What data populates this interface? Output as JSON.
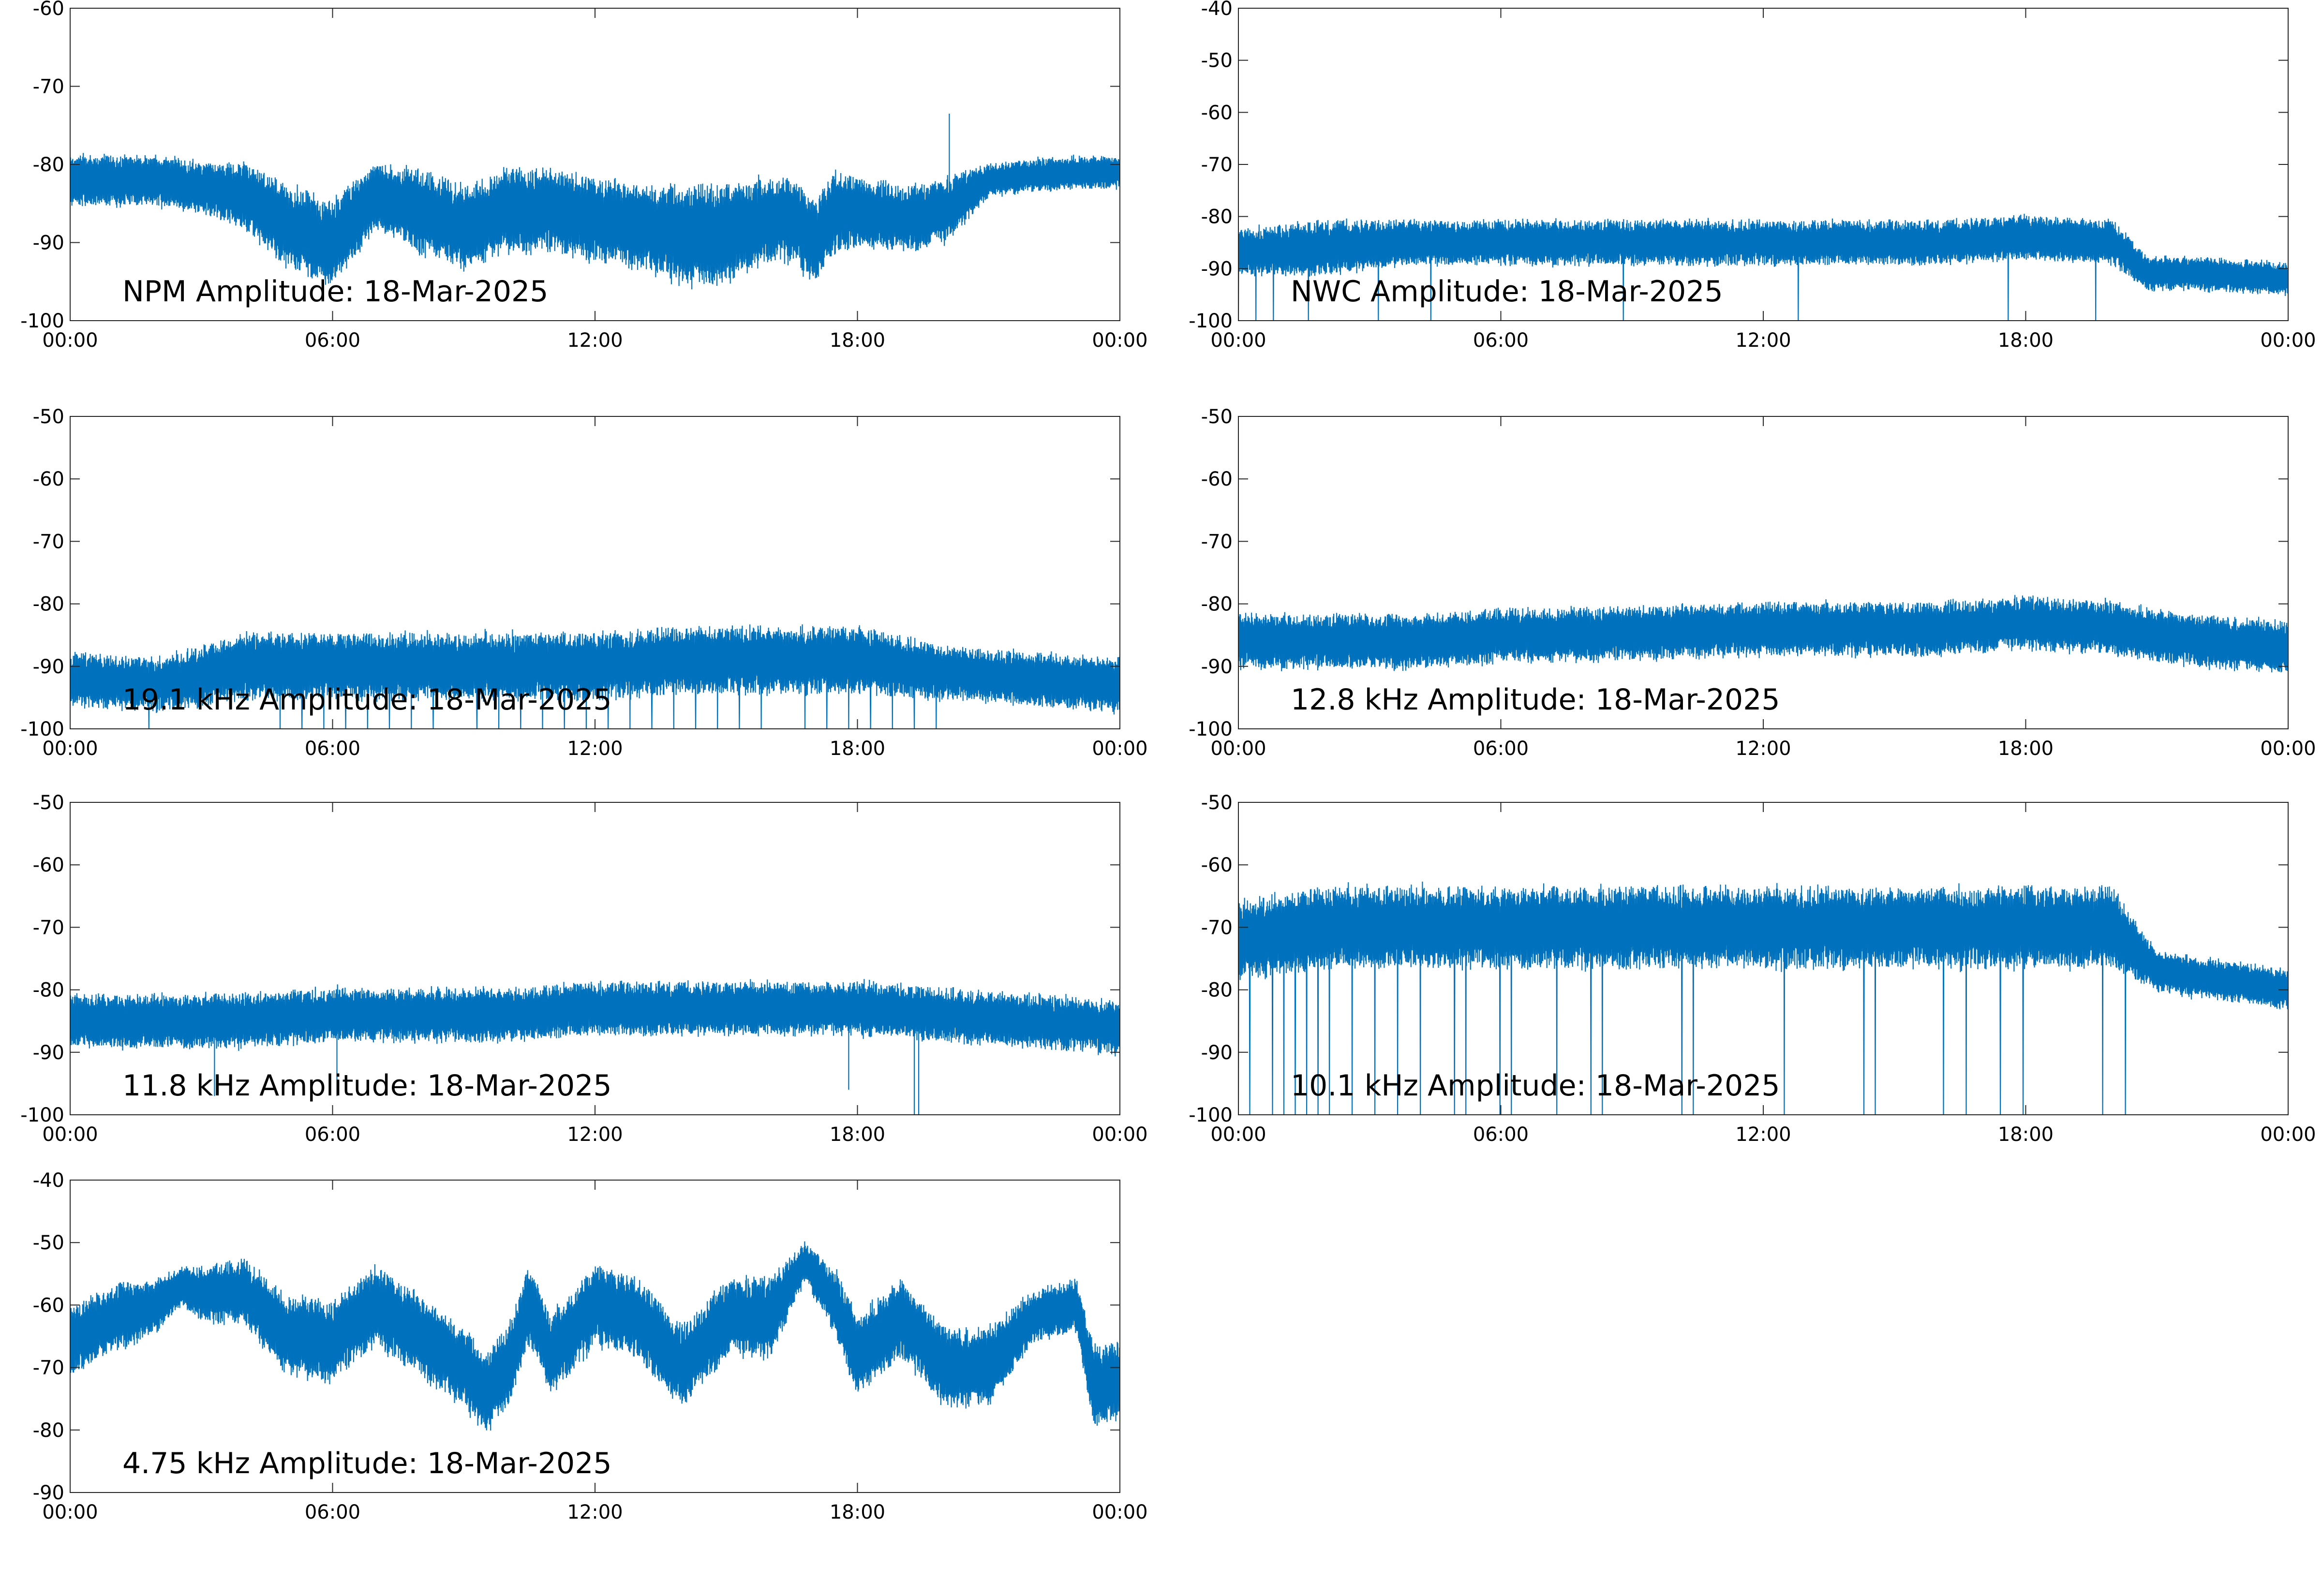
{
  "chart_data": [
    {
      "type": "line",
      "title": "NPM Amplitude: 18-Mar-2025",
      "xlabel": "",
      "ylabel": "",
      "x_ticks": [
        "00:00",
        "06:00",
        "12:00",
        "18:00",
        "00:00"
      ],
      "xlim_hours": [
        0,
        24
      ],
      "ylim": [
        -100,
        -60
      ],
      "y_ticks": [
        -60,
        -70,
        -80,
        -90,
        -100
      ],
      "grid": false,
      "line_color": "#0072BD",
      "series": [
        {
          "x_hours": [
            0,
            1,
            2,
            3,
            4,
            5,
            6,
            7,
            8,
            9,
            10,
            11,
            12,
            13,
            14,
            15,
            16,
            16.5,
            17,
            17.5,
            18,
            19,
            20,
            21,
            22,
            23,
            24
          ],
          "center": [
            -82,
            -82,
            -82,
            -83,
            -84,
            -88,
            -90,
            -84,
            -86,
            -88,
            -86,
            -86,
            -87,
            -88,
            -89,
            -89,
            -87,
            -87,
            -90,
            -86,
            -86,
            -87,
            -86,
            -82,
            -81.5,
            -81,
            -81
          ],
          "spread": [
            3,
            3,
            3,
            3,
            4,
            5,
            5,
            4,
            5,
            5,
            5,
            5,
            5,
            5,
            6,
            6,
            5,
            5,
            5,
            5,
            4,
            4,
            4,
            2,
            2,
            2,
            2
          ],
          "spikes": [
            [
              20.1,
              -73.5
            ]
          ]
        }
      ]
    },
    {
      "type": "line",
      "title": "NWC Amplitude: 18-Mar-2025",
      "xlabel": "",
      "ylabel": "",
      "x_ticks": [
        "00:00",
        "06:00",
        "12:00",
        "18:00",
        "00:00"
      ],
      "xlim_hours": [
        0,
        24
      ],
      "ylim": [
        -100,
        -40
      ],
      "y_ticks": [
        -40,
        -50,
        -60,
        -70,
        -80,
        -90,
        -100
      ],
      "grid": false,
      "line_color": "#0072BD",
      "series": [
        {
          "x_hours": [
            0,
            2,
            4,
            6,
            8,
            10,
            12,
            14,
            16,
            18,
            20,
            20.8,
            22,
            24
          ],
          "center": [
            -87,
            -86,
            -85,
            -85,
            -85,
            -85,
            -85,
            -85,
            -85,
            -84,
            -85,
            -91,
            -91,
            -92
          ],
          "spread": [
            4,
            5,
            4,
            4,
            4,
            4,
            4,
            4,
            4,
            4,
            4,
            3,
            3,
            3
          ],
          "dips": {
            "from": 0,
            "to": 21,
            "period": 0.4,
            "min": -100
          }
        }
      ]
    },
    {
      "type": "line",
      "title": "19.1 kHz Amplitude: 18-Mar-2025",
      "xlabel": "",
      "ylabel": "",
      "x_ticks": [
        "00:00",
        "06:00",
        "12:00",
        "18:00",
        "00:00"
      ],
      "xlim_hours": [
        0,
        24
      ],
      "ylim": [
        -100,
        -50
      ],
      "y_ticks": [
        -50,
        -60,
        -70,
        -80,
        -90,
        -100
      ],
      "grid": false,
      "line_color": "#0072BD",
      "series": [
        {
          "x_hours": [
            0,
            2,
            4,
            6,
            8,
            10,
            12,
            14,
            16,
            18,
            20,
            22,
            24
          ],
          "center": [
            -92,
            -93,
            -90,
            -90,
            -90,
            -90,
            -90,
            -89,
            -89,
            -89,
            -91,
            -92,
            -93
          ],
          "spread": [
            4,
            4,
            5,
            5,
            5,
            5,
            5,
            5,
            5,
            5,
            4,
            4,
            4
          ],
          "dips": {
            "from": 1.8,
            "to": 20,
            "period": 0.25,
            "min": -100
          }
        }
      ]
    },
    {
      "type": "line",
      "title": "12.8 kHz Amplitude: 18-Mar-2025",
      "xlabel": "",
      "ylabel": "",
      "x_ticks": [
        "00:00",
        "06:00",
        "12:00",
        "18:00",
        "00:00"
      ],
      "xlim_hours": [
        0,
        24
      ],
      "ylim": [
        -100,
        -50
      ],
      "y_ticks": [
        -50,
        -60,
        -70,
        -80,
        -90,
        -100
      ],
      "grid": false,
      "line_color": "#0072BD",
      "series": [
        {
          "x_hours": [
            0,
            2,
            4,
            6,
            8,
            10,
            12,
            14,
            16,
            18,
            20,
            22,
            24
          ],
          "center": [
            -86,
            -86,
            -86,
            -85,
            -85,
            -84.5,
            -84,
            -84,
            -84,
            -83,
            -84,
            -86,
            -87
          ],
          "spread": [
            4,
            4,
            4,
            4,
            4,
            4,
            4,
            4,
            4,
            4,
            4,
            4,
            4
          ]
        }
      ]
    },
    {
      "type": "line",
      "title": "11.8 kHz Amplitude: 18-Mar-2025",
      "xlabel": "",
      "ylabel": "",
      "x_ticks": [
        "00:00",
        "06:00",
        "12:00",
        "18:00",
        "00:00"
      ],
      "xlim_hours": [
        0,
        24
      ],
      "ylim": [
        -100,
        -50
      ],
      "y_ticks": [
        -50,
        -60,
        -70,
        -80,
        -90,
        -100
      ],
      "grid": false,
      "line_color": "#0072BD",
      "series": [
        {
          "x_hours": [
            0,
            2,
            4,
            6,
            8,
            10,
            12,
            14,
            16,
            18,
            20,
            22,
            24
          ],
          "center": [
            -85,
            -85,
            -85,
            -84,
            -84,
            -84,
            -83,
            -83,
            -83,
            -83,
            -84,
            -85,
            -86
          ],
          "spread": [
            4,
            4,
            4,
            4,
            4,
            4,
            4,
            4,
            4,
            4,
            4,
            4,
            4
          ],
          "spikes": [
            [
              3.3,
              -97
            ],
            [
              6.1,
              -97
            ],
            [
              17.8,
              -96
            ],
            [
              19.3,
              -100
            ],
            [
              19.4,
              -100
            ]
          ]
        }
      ]
    },
    {
      "type": "line",
      "title": "10.1 kHz Amplitude: 18-Mar-2025",
      "xlabel": "",
      "ylabel": "",
      "x_ticks": [
        "00:00",
        "06:00",
        "12:00",
        "18:00",
        "00:00"
      ],
      "xlim_hours": [
        0,
        24
      ],
      "ylim": [
        -100,
        -50
      ],
      "y_ticks": [
        -50,
        -60,
        -70,
        -80,
        -90,
        -100
      ],
      "grid": false,
      "line_color": "#0072BD",
      "series": [
        {
          "x_hours": [
            0,
            2,
            4,
            6,
            8,
            10,
            12,
            14,
            16,
            18,
            20,
            21,
            22,
            23,
            24
          ],
          "center": [
            -72,
            -70,
            -70,
            -70,
            -70,
            -70,
            -70,
            -70,
            -70,
            -70,
            -70,
            -77,
            -78,
            -79,
            -80
          ],
          "spread": [
            6,
            6,
            6,
            6,
            6,
            6,
            6,
            6,
            6,
            6,
            6,
            3,
            3,
            3,
            3
          ],
          "dips": {
            "from": 0,
            "to": 20.6,
            "period": 0.26,
            "min": -100
          }
        }
      ]
    },
    {
      "type": "line",
      "title": "4.75 kHz Amplitude: 18-Mar-2025",
      "xlabel": "",
      "ylabel": "",
      "x_ticks": [
        "00:00",
        "06:00",
        "12:00",
        "18:00",
        "00:00"
      ],
      "xlim_hours": [
        0,
        24
      ],
      "ylim": [
        -90,
        -40
      ],
      "y_ticks": [
        -40,
        -50,
        -60,
        -70,
        -80,
        -90
      ],
      "grid": false,
      "line_color": "#0072BD",
      "series": [
        {
          "x_hours": [
            0,
            1,
            2,
            2.5,
            3,
            4,
            5,
            6,
            7,
            8,
            9,
            9.5,
            10,
            10.5,
            11,
            12,
            13,
            14,
            15,
            16,
            16.8,
            17.5,
            18,
            19,
            20,
            21,
            22,
            23,
            23.4,
            24
          ],
          "center": [
            -66,
            -62,
            -60,
            -57,
            -58,
            -58,
            -65,
            -66,
            -60,
            -65,
            -70,
            -74,
            -70,
            -60,
            -68,
            -60,
            -62,
            -70,
            -62,
            -62,
            -53,
            -60,
            -68,
            -62,
            -70,
            -70,
            -62,
            -60,
            -73,
            -72
          ],
          "spread": [
            5,
            5,
            4,
            3,
            4,
            5,
            6,
            6,
            6,
            6,
            6,
            6,
            6,
            6,
            6,
            6,
            6,
            6,
            6,
            6,
            3,
            5,
            6,
            6,
            6,
            6,
            4,
            4,
            6,
            6
          ]
        }
      ]
    }
  ]
}
